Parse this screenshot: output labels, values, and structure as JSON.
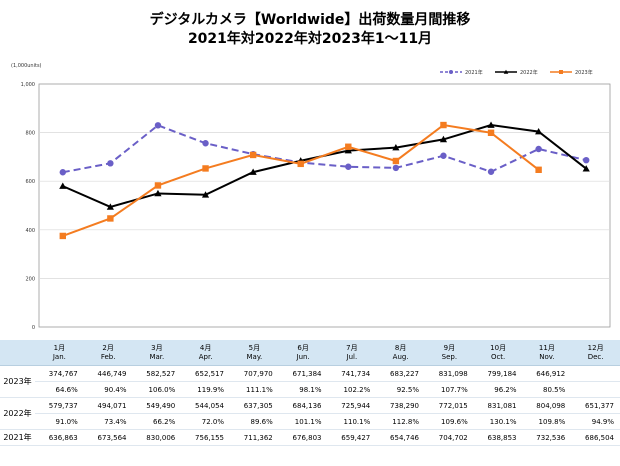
{
  "title": {
    "line1": "デジタルカメラ【Worldwide】出荷数量月間推移",
    "line2": "2021年対2022年対2023年1～11月"
  },
  "chart_data": {
    "type": "line",
    "unit_label": "(1,000units)",
    "ylim": [
      0,
      1000
    ],
    "y_ticks": [
      "0",
      "200",
      "400",
      "600",
      "800",
      "1,000"
    ],
    "grid": true,
    "legend_position": "top-right",
    "categories": [
      "1月",
      "2月",
      "3月",
      "4月",
      "5月",
      "6月",
      "7月",
      "8月",
      "9月",
      "10月",
      "11月",
      "12月"
    ],
    "series": [
      {
        "name": "2021年",
        "color": "#6a5fc7",
        "dashed": true,
        "marker": "circle",
        "values": [
          636.863,
          673.564,
          830.006,
          756.155,
          711.362,
          676.803,
          659.427,
          654.746,
          704.702,
          638.853,
          732.536,
          686.504
        ]
      },
      {
        "name": "2022年",
        "color": "#000000",
        "dashed": false,
        "marker": "triangle",
        "values": [
          579.737,
          494.071,
          549.49,
          544.054,
          637.305,
          684.136,
          725.944,
          738.29,
          772.015,
          831.081,
          804.098,
          651.377
        ]
      },
      {
        "name": "2023年",
        "color": "#f47c20",
        "dashed": false,
        "marker": "square",
        "values": [
          374.767,
          446.749,
          582.527,
          652.517,
          707.97,
          671.384,
          741.734,
          683.227,
          831.098,
          799.184,
          646.912,
          null
        ]
      }
    ]
  },
  "table": {
    "months": [
      {
        "ja": "1月",
        "en": "Jan."
      },
      {
        "ja": "2月",
        "en": "Feb."
      },
      {
        "ja": "3月",
        "en": "Mar."
      },
      {
        "ja": "4月",
        "en": "Apr."
      },
      {
        "ja": "5月",
        "en": "May."
      },
      {
        "ja": "6月",
        "en": "Jun."
      },
      {
        "ja": "7月",
        "en": "Jul."
      },
      {
        "ja": "8月",
        "en": "Aug."
      },
      {
        "ja": "9月",
        "en": "Sep."
      },
      {
        "ja": "10月",
        "en": "Oct."
      },
      {
        "ja": "11月",
        "en": "Nov."
      },
      {
        "ja": "12月",
        "en": "Dec."
      }
    ],
    "rows": [
      {
        "label": "2023年",
        "values": [
          "374,767",
          "446,749",
          "582,527",
          "652,517",
          "707,970",
          "671,384",
          "741,734",
          "683,227",
          "831,098",
          "799,184",
          "646,912",
          ""
        ],
        "pct": [
          "64.6%",
          "90.4%",
          "106.0%",
          "119.9%",
          "111.1%",
          "98.1%",
          "102.2%",
          "92.5%",
          "107.7%",
          "96.2%",
          "80.5%",
          ""
        ]
      },
      {
        "label": "2022年",
        "values": [
          "579,737",
          "494,071",
          "549,490",
          "544,054",
          "637,305",
          "684,136",
          "725,944",
          "738,290",
          "772,015",
          "831,081",
          "804,098",
          "651,377"
        ],
        "pct": [
          "91.0%",
          "73.4%",
          "66.2%",
          "72.0%",
          "89.6%",
          "101.1%",
          "110.1%",
          "112.8%",
          "109.6%",
          "130.1%",
          "109.8%",
          "94.9%"
        ]
      },
      {
        "label": "2021年",
        "values": [
          "636,863",
          "673,564",
          "830,006",
          "756,155",
          "711,362",
          "676,803",
          "659,427",
          "654,746",
          "704,702",
          "638,853",
          "732,536",
          "686,504"
        ]
      }
    ]
  }
}
